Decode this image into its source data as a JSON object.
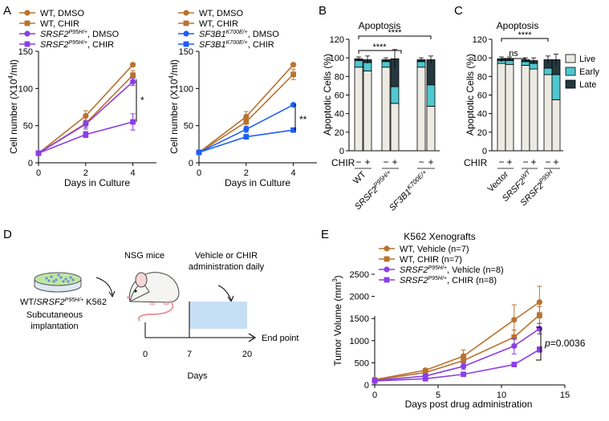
{
  "panel_labels": {
    "A": "A",
    "B": "B",
    "C": "C",
    "D": "D",
    "E": "E"
  },
  "colors": {
    "wt": "#b8732f",
    "mutant": "#8a3ee6",
    "sf3b1": "#1f5ef7",
    "live": "#ecebe3",
    "early": "#4fc8cf",
    "late": "#25383f",
    "days_box": "#c7dff5"
  },
  "chart_data": [
    {
      "id": "A-left",
      "type": "line",
      "title": "",
      "xlabel": "Days in Culture",
      "ylabel_main": "Cell number (X10",
      "ylabel_sup": "4",
      "ylabel_end": "/ml)",
      "xlim": [
        0,
        5
      ],
      "ylim": [
        0,
        150
      ],
      "xticks": [
        "0",
        "2",
        "4"
      ],
      "yticks": [
        "0",
        "50",
        "100",
        "150"
      ],
      "x": [
        0,
        2,
        4
      ],
      "series": [
        {
          "name": "WT, DMSO",
          "label_pre": "WT, DMSO",
          "label_sup": "",
          "label_post": "",
          "values": [
            13,
            63,
            132
          ],
          "errors": [
            0,
            7,
            0
          ],
          "color": "#b8732f",
          "marker": "circle"
        },
        {
          "name": "WT, CHIR",
          "label_pre": "WT, CHIR",
          "label_sup": "",
          "label_post": "",
          "values": [
            13,
            53,
            118
          ],
          "errors": [
            0,
            8,
            6
          ],
          "color": "#b8732f",
          "marker": "square"
        },
        {
          "name": "SRSF2P95H/+, DMSO",
          "label_pre": "SRSF2",
          "label_sup": "P95H/+",
          "label_post": ", DMSO",
          "values": [
            13,
            52,
            109
          ],
          "errors": [
            0,
            5,
            5
          ],
          "color": "#8a3ee6",
          "marker": "circle"
        },
        {
          "name": "SRSF2P95H/+, CHIR",
          "label_pre": "SRSF2",
          "label_sup": "P95H/+",
          "label_post": ", CHIR",
          "values": [
            13,
            38,
            55
          ],
          "errors": [
            0,
            4,
            11
          ],
          "color": "#8a3ee6",
          "marker": "square"
        }
      ],
      "significance": "*"
    },
    {
      "id": "A-right",
      "type": "line",
      "title": "",
      "xlabel": "Days in Culture",
      "ylabel_main": "Cell number (X10",
      "ylabel_sup": "4",
      "ylabel_end": "/ml)",
      "xlim": [
        0,
        5
      ],
      "ylim": [
        0,
        150
      ],
      "xticks": [
        "0",
        "2",
        "4"
      ],
      "yticks": [
        "0",
        "50",
        "100",
        "150"
      ],
      "x": [
        0,
        2,
        4
      ],
      "series": [
        {
          "name": "WT, DMSO",
          "label_pre": "WT, DMSO",
          "label_sup": "",
          "label_post": "",
          "values": [
            14,
            62,
            132
          ],
          "errors": [
            0,
            7,
            0
          ],
          "color": "#b8732f",
          "marker": "circle"
        },
        {
          "name": "WT, CHIR",
          "label_pre": "WT, CHIR",
          "label_sup": "",
          "label_post": "",
          "values": [
            14,
            55,
            119
          ],
          "errors": [
            0,
            7,
            7
          ],
          "color": "#b8732f",
          "marker": "square"
        },
        {
          "name": "SF3B1K700E/+, DMSO",
          "label_pre": "SF3B1",
          "label_sup": "K700E/+",
          "label_post": ", DMSO",
          "values": [
            14,
            45,
            78
          ],
          "errors": [
            0,
            4,
            0
          ],
          "color": "#1f5ef7",
          "marker": "circle"
        },
        {
          "name": "SF3B1K700E/+, CHIR",
          "label_pre": "SF3B1",
          "label_sup": "K700E/+",
          "label_post": ", CHIR",
          "values": [
            14,
            35,
            44
          ],
          "errors": [
            0,
            3,
            0
          ],
          "color": "#1f5ef7",
          "marker": "square"
        }
      ],
      "significance": "**"
    },
    {
      "id": "B",
      "type": "bar",
      "stacked": true,
      "title": "Apoptosis",
      "ylabel": "Apoptotic Cells (%)",
      "ylim": [
        0,
        120
      ],
      "yticks": [
        "0",
        "20",
        "40",
        "60",
        "80",
        "100",
        "120"
      ],
      "treatment_label": "CHIR",
      "treatment_ticks": [
        "−",
        "+",
        "−",
        "+",
        "−",
        "+"
      ],
      "groups": [
        {
          "pre": "WT",
          "sup": "",
          "italic": false
        },
        {
          "pre": "SRSF2",
          "sup": "P95H/+",
          "italic": true
        },
        {
          "pre": "SF3B1",
          "sup": "K700E/+",
          "italic": true
        }
      ],
      "bars": [
        {
          "live": 90,
          "early": 7,
          "late": 2
        },
        {
          "live": 86,
          "early": 9,
          "late": 3
        },
        {
          "live": 90,
          "early": 6,
          "late": 2
        },
        {
          "live": 51,
          "early": 18,
          "late": 30
        },
        {
          "live": 90,
          "early": 6,
          "late": 2
        },
        {
          "live": 48,
          "early": 23,
          "late": 27
        }
      ],
      "errors": [
        2,
        4,
        2,
        10,
        2,
        4
      ],
      "significance": [
        {
          "label": "****"
        },
        {
          "label": "****"
        }
      ]
    },
    {
      "id": "C",
      "type": "bar",
      "stacked": true,
      "title": "Apoptosis",
      "ylabel": "Apoptotic Cells (%)",
      "ylim": [
        0,
        120
      ],
      "yticks": [
        "0",
        "20",
        "40",
        "60",
        "80",
        "100",
        "120"
      ],
      "treatment_label": "CHIR",
      "treatment_ticks": [
        "−",
        "+",
        "−",
        "+",
        "−",
        "+"
      ],
      "legend": [
        {
          "name": "Live",
          "key": "live"
        },
        {
          "name": "Early",
          "key": "early"
        },
        {
          "name": "Late",
          "key": "late"
        }
      ],
      "groups": [
        {
          "pre": "Vector",
          "sup": "",
          "italic": false
        },
        {
          "pre": "SRSF2",
          "sup": "WT",
          "italic": true
        },
        {
          "pre": "SRSF2",
          "sup": "P95H",
          "italic": true
        }
      ],
      "bars": [
        {
          "live": 94,
          "early": 3,
          "late": 2
        },
        {
          "live": 93,
          "early": 4,
          "late": 2
        },
        {
          "live": 92,
          "early": 4,
          "late": 2
        },
        {
          "live": 88,
          "early": 6,
          "late": 3
        },
        {
          "live": 82,
          "early": 7,
          "late": 9
        },
        {
          "live": 55,
          "early": 27,
          "late": 16
        }
      ],
      "errors": [
        2,
        2,
        2,
        3,
        4,
        6
      ],
      "significance": [
        {
          "label": "ns"
        },
        {
          "label": "****"
        }
      ]
    },
    {
      "id": "E",
      "type": "line",
      "title": "K562 Xenografts",
      "xlabel": "Days post drug administration",
      "ylabel_main": "Tumor Volume (mm",
      "ylabel_sup": "3",
      "ylabel_end": ")",
      "xlim": [
        0,
        15
      ],
      "ylim": [
        0,
        2500
      ],
      "xticks": [
        "0",
        "5",
        "10",
        "15"
      ],
      "yticks": [
        "0",
        "500",
        "1000",
        "1500",
        "2000",
        "2500"
      ],
      "x": [
        0,
        4,
        7,
        11,
        13
      ],
      "series": [
        {
          "name": "WT, Vehicle (n=7)",
          "label_pre": "WT, Vehicle (n=7)",
          "label_sup": "",
          "label_post": "",
          "values": [
            120,
            330,
            650,
            1470,
            1870
          ],
          "errors": [
            20,
            40,
            140,
            340,
            360
          ],
          "color": "#b8732f",
          "marker": "circle"
        },
        {
          "name": "WT, CHIR (n=7)",
          "label_pre": "WT, CHIR (n=7)",
          "label_sup": "",
          "label_post": "",
          "values": [
            110,
            280,
            550,
            1080,
            1580
          ],
          "errors": [
            20,
            30,
            90,
            160,
            190
          ],
          "color": "#b8732f",
          "marker": "square"
        },
        {
          "name": "SRSF2P95H/+, Vehicle (n=8)",
          "label_pre": "SRSF2",
          "label_sup": "P95H/+",
          "label_post": ", Vehicle (n=8)",
          "values": [
            100,
            200,
            420,
            880,
            1270
          ],
          "errors": [
            20,
            30,
            70,
            180,
            120
          ],
          "color": "#8a3ee6",
          "marker": "circle"
        },
        {
          "name": "SRSF2P95H/+, CHIR (n=8)",
          "label_pre": "SRSF2",
          "label_sup": "P95H/+",
          "label_post": ", CHIR (n=8)",
          "values": [
            90,
            140,
            240,
            460,
            800
          ],
          "errors": [
            10,
            20,
            30,
            50,
            60
          ],
          "color": "#8a3ee6",
          "marker": "square"
        }
      ],
      "pvalue_prefix": "p",
      "pvalue": "=0.0036"
    }
  ],
  "diagram": {
    "mouse_label": "NSG mice",
    "admin_label_line1": "Vehicle or CHIR",
    "admin_label_line2": "administration daily",
    "cells_label_pre": "WT/",
    "cells_label_gene": "SRSF2",
    "cells_label_sup": "P95H/+",
    "cells_label_post": " K562",
    "implant_line1": "Subcutaneous",
    "implant_line2": "implantation",
    "timeline_ticks": [
      "0",
      "7",
      "20"
    ],
    "endpoint_label": "End point",
    "days_label": "Days"
  }
}
